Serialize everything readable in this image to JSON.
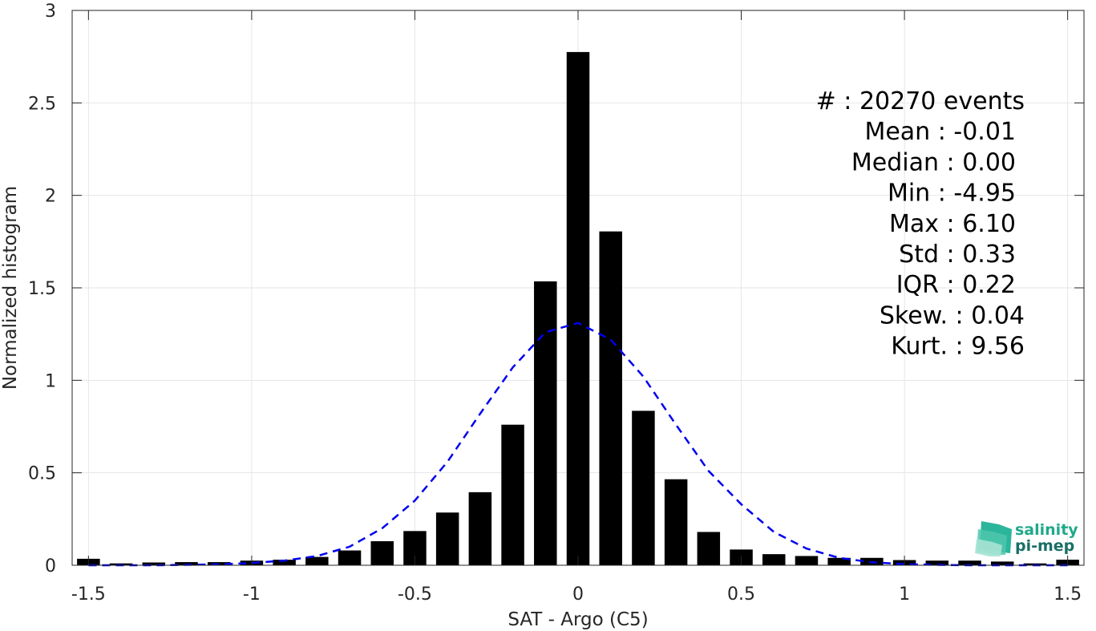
{
  "chart_data": {
    "type": "bar",
    "xlabel": "SAT - Argo (C5)",
    "ylabel": "Normalized histogram",
    "xlim": [
      -1.55,
      1.55
    ],
    "ylim": [
      0,
      3
    ],
    "x_ticks": [
      -1.5,
      -1,
      -0.5,
      0,
      0.5,
      1,
      1.5
    ],
    "x_tick_labels": [
      "-1.5",
      "-1",
      "-0.5",
      "0",
      "0.5",
      "1",
      "1.5"
    ],
    "y_ticks": [
      0,
      0.5,
      1,
      1.5,
      2,
      2.5,
      3
    ],
    "y_tick_labels": [
      "0",
      "0.5",
      "1",
      "1.5",
      "2",
      "2.5",
      "3"
    ],
    "grid": true,
    "bar_width": 0.07,
    "bar_color": "#000000",
    "bars": {
      "x": [
        -1.5,
        -1.4,
        -1.3,
        -1.2,
        -1.1,
        -1.0,
        -0.9,
        -0.8,
        -0.7,
        -0.6,
        -0.5,
        -0.4,
        -0.3,
        -0.2,
        -0.1,
        0.0,
        0.1,
        0.2,
        0.3,
        0.4,
        0.5,
        0.6,
        0.7,
        0.8,
        0.9,
        1.0,
        1.1,
        1.2,
        1.3,
        1.4,
        1.5
      ],
      "y": [
        0.035,
        0.01,
        0.015,
        0.017,
        0.017,
        0.025,
        0.03,
        0.045,
        0.08,
        0.13,
        0.185,
        0.285,
        0.395,
        0.76,
        1.535,
        2.775,
        1.805,
        0.835,
        0.465,
        0.18,
        0.085,
        0.06,
        0.05,
        0.04,
        0.04,
        0.028,
        0.025,
        0.025,
        0.02,
        0.01,
        0.03
      ]
    },
    "fit_curve": {
      "style": "dashed",
      "color": "#0000ee",
      "x": [
        -1.5,
        -1.4,
        -1.3,
        -1.2,
        -1.1,
        -1.0,
        -0.9,
        -0.8,
        -0.7,
        -0.6,
        -0.5,
        -0.4,
        -0.3,
        -0.2,
        -0.1,
        0.0,
        0.1,
        0.2,
        0.3,
        0.4,
        0.5,
        0.6,
        0.7,
        0.8,
        0.9,
        1.0,
        1.1,
        1.2,
        1.3,
        1.4,
        1.5
      ],
      "y": [
        0.0,
        0.0,
        0.0,
        0.002,
        0.005,
        0.012,
        0.025,
        0.05,
        0.1,
        0.2,
        0.35,
        0.56,
        0.82,
        1.07,
        1.26,
        1.31,
        1.22,
        1.02,
        0.76,
        0.51,
        0.33,
        0.18,
        0.09,
        0.04,
        0.016,
        0.006,
        0.002,
        0.0,
        0.0,
        0.0,
        0.0
      ]
    },
    "stats": [
      "#  : 20270 events",
      "Mean : -0.01",
      "Median : 0.00",
      "Min : -4.95",
      "Max : 6.10",
      "Std : 0.33",
      "IQR : 0.22",
      "Skew. : 0.04",
      "Kurt. : 9.56"
    ]
  },
  "logo": {
    "line1": "salinity",
    "line2": "pi-mep",
    "color1": "#1fa98a",
    "color2": "#1a6e66"
  }
}
